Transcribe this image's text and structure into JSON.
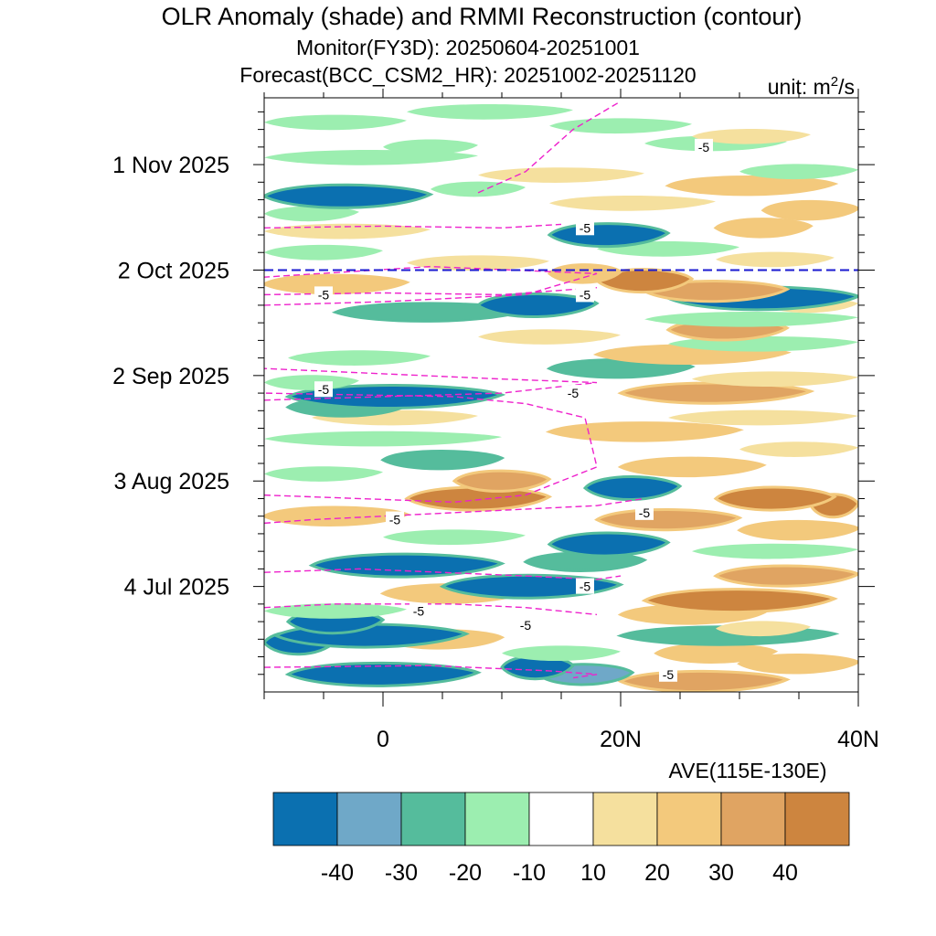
{
  "chart_data": {
    "type": "heatmap",
    "title": "OLR Anomaly (shade) and RMMI Reconstruction (contour)",
    "subtitle_monitor": "Monitor(FY3D): 20250604-20251001",
    "subtitle_forecast": "Forecast(BCC_CSM2_HR): 20251002-20251120",
    "unit_label": "unit: m",
    "unit_sup": "2",
    "unit_tail": "/s",
    "xlabel": "AVE(115E-130E)",
    "x_range": [
      -10,
      40
    ],
    "x_ticks": [
      {
        "value": 0,
        "label": "0"
      },
      {
        "value": 20,
        "label": "20N"
      },
      {
        "value": 40,
        "label": "40N"
      }
    ],
    "y_range_days": [
      0,
      169
    ],
    "y_start": "2025-06-04",
    "y_end": "2025-11-20",
    "y_ticks": [
      {
        "day": 30,
        "label": "4 Jul 2025"
      },
      {
        "day": 60,
        "label": "3 Aug 2025"
      },
      {
        "day": 90,
        "label": "2 Sep 2025"
      },
      {
        "day": 120,
        "label": "2 Oct 2025"
      },
      {
        "day": 150,
        "label": "1 Nov 2025"
      }
    ],
    "forecast_start_day": 120,
    "colorbar": {
      "colors": [
        "#0b70b0",
        "#6fa8c8",
        "#55bc9c",
        "#9ceeb0",
        "#ffffff",
        "#f5e09e",
        "#f3c97c",
        "#e0a462",
        "#cd853f"
      ],
      "labels": [
        "-40",
        "-30",
        "-20",
        "-10",
        "10",
        "20",
        "30",
        "40"
      ]
    },
    "bands": [
      {
        "day": 3,
        "lat0": 20,
        "lat1": 34,
        "level": 3
      },
      {
        "day": 5,
        "lat0": -8,
        "lat1": 8,
        "level": -4
      },
      {
        "day": 5,
        "lat0": 13,
        "lat1": 21,
        "level": -3
      },
      {
        "day": 7,
        "lat0": 10,
        "lat1": 16,
        "level": -4
      },
      {
        "day": 8,
        "lat0": 30,
        "lat1": 40,
        "level": 2
      },
      {
        "day": 11,
        "lat0": 10,
        "lat1": 20,
        "level": -1
      },
      {
        "day": 11,
        "lat0": 23,
        "lat1": 33,
        "level": 2
      },
      {
        "day": 14,
        "lat0": -10,
        "lat1": -4,
        "level": -4
      },
      {
        "day": 15,
        "lat0": 0,
        "lat1": 10,
        "level": 2
      },
      {
        "day": 16,
        "lat0": -9,
        "lat1": 7,
        "level": -4
      },
      {
        "day": 16,
        "lat0": 20,
        "lat1": 38,
        "level": -2
      },
      {
        "day": 18,
        "lat0": 28,
        "lat1": 36,
        "level": 1
      },
      {
        "day": 20,
        "lat0": -8,
        "lat1": 0,
        "level": -4
      },
      {
        "day": 22,
        "lat0": 20,
        "lat1": 32,
        "level": 2
      },
      {
        "day": 23,
        "lat0": -10,
        "lat1": 2,
        "level": -1
      },
      {
        "day": 26,
        "lat0": 22,
        "lat1": 38,
        "level": 4
      },
      {
        "day": 28,
        "lat0": 0,
        "lat1": 12,
        "level": 2
      },
      {
        "day": 30,
        "lat0": 5,
        "lat1": 20,
        "level": -4
      },
      {
        "day": 33,
        "lat0": 28,
        "lat1": 40,
        "level": 3
      },
      {
        "day": 36,
        "lat0": -6,
        "lat1": 10,
        "level": -4
      },
      {
        "day": 37,
        "lat0": 12,
        "lat1": 22,
        "level": -2
      },
      {
        "day": 40,
        "lat0": 26,
        "lat1": 40,
        "level": -1
      },
      {
        "day": 42,
        "lat0": 14,
        "lat1": 24,
        "level": -4
      },
      {
        "day": 44,
        "lat0": 0,
        "lat1": 12,
        "level": -1
      },
      {
        "day": 46,
        "lat0": 30,
        "lat1": 40,
        "level": 2
      },
      {
        "day": 49,
        "lat0": 18,
        "lat1": 30,
        "level": 3
      },
      {
        "day": 50,
        "lat0": -10,
        "lat1": 2,
        "level": 2
      },
      {
        "day": 53,
        "lat0": 36,
        "lat1": 40,
        "level": 4
      },
      {
        "day": 55,
        "lat0": 2,
        "lat1": 14,
        "level": 4
      },
      {
        "day": 55,
        "lat0": 28,
        "lat1": 38,
        "level": 4
      },
      {
        "day": 58,
        "lat0": 17,
        "lat1": 25,
        "level": -4
      },
      {
        "day": 60,
        "lat0": 6,
        "lat1": 14,
        "level": 3
      },
      {
        "day": 62,
        "lat0": -10,
        "lat1": 0,
        "level": -1
      },
      {
        "day": 64,
        "lat0": 20,
        "lat1": 32,
        "level": 2
      },
      {
        "day": 66,
        "lat0": 0,
        "lat1": 10,
        "level": -2
      },
      {
        "day": 69,
        "lat0": 30,
        "lat1": 40,
        "level": 1
      },
      {
        "day": 72,
        "lat0": -10,
        "lat1": 10,
        "level": -1
      },
      {
        "day": 74,
        "lat0": 14,
        "lat1": 30,
        "level": 2
      },
      {
        "day": 78,
        "lat0": -6,
        "lat1": 8,
        "level": 1
      },
      {
        "day": 78,
        "lat0": 24,
        "lat1": 40,
        "level": 1
      },
      {
        "day": 81,
        "lat0": -8,
        "lat1": 2,
        "level": -2
      },
      {
        "day": 84,
        "lat0": -8,
        "lat1": 10,
        "level": -4
      },
      {
        "day": 85,
        "lat0": 20,
        "lat1": 36,
        "level": 3
      },
      {
        "day": 88,
        "lat0": -10,
        "lat1": -2,
        "level": -1
      },
      {
        "day": 89,
        "lat0": 26,
        "lat1": 40,
        "level": 1
      },
      {
        "day": 92,
        "lat0": 14,
        "lat1": 26,
        "level": -2
      },
      {
        "day": 95,
        "lat0": -8,
        "lat1": 4,
        "level": -1
      },
      {
        "day": 96,
        "lat0": 18,
        "lat1": 34,
        "level": 2
      },
      {
        "day": 99,
        "lat0": 24,
        "lat1": 40,
        "level": -1
      },
      {
        "day": 101,
        "lat0": 8,
        "lat1": 20,
        "level": 1
      },
      {
        "day": 103,
        "lat0": 24,
        "lat1": 34,
        "level": 3
      },
      {
        "day": 106,
        "lat0": 22,
        "lat1": 40,
        "level": -1
      },
      {
        "day": 108,
        "lat0": -4,
        "lat1": 12,
        "level": -2
      },
      {
        "day": 110,
        "lat0": 8,
        "lat1": 18,
        "level": -4
      },
      {
        "day": 110,
        "lat0": 32,
        "lat1": 40,
        "level": 1
      },
      {
        "day": 112,
        "lat0": 24,
        "lat1": 40,
        "level": -4
      },
      {
        "day": 114,
        "lat0": 22,
        "lat1": 34,
        "level": 3
      },
      {
        "day": 116,
        "lat0": -10,
        "lat1": 2,
        "level": 2
      },
      {
        "day": 117,
        "lat0": 18,
        "lat1": 26,
        "level": 4
      },
      {
        "day": 119,
        "lat0": 14,
        "lat1": 20,
        "level": 2
      },
      {
        "day": 122,
        "lat0": 2,
        "lat1": 14,
        "level": 1
      },
      {
        "day": 123,
        "lat0": 28,
        "lat1": 38,
        "level": 1
      },
      {
        "day": 125,
        "lat0": -10,
        "lat1": 0,
        "level": -1
      },
      {
        "day": 126,
        "lat0": 18,
        "lat1": 30,
        "level": -1
      },
      {
        "day": 130,
        "lat0": 14,
        "lat1": 24,
        "level": -4
      },
      {
        "day": 131,
        "lat0": -10,
        "lat1": 4,
        "level": 1
      },
      {
        "day": 132,
        "lat0": 28,
        "lat1": 36,
        "level": 2
      },
      {
        "day": 136,
        "lat0": -10,
        "lat1": -2,
        "level": -1
      },
      {
        "day": 137,
        "lat0": 32,
        "lat1": 40,
        "level": 2
      },
      {
        "day": 139,
        "lat0": 14,
        "lat1": 28,
        "level": 1
      },
      {
        "day": 141,
        "lat0": -10,
        "lat1": 4,
        "level": -4
      },
      {
        "day": 143,
        "lat0": 4,
        "lat1": 12,
        "level": -1
      },
      {
        "day": 144,
        "lat0": 24,
        "lat1": 38,
        "level": 2
      },
      {
        "day": 147,
        "lat0": 8,
        "lat1": 22,
        "level": 1
      },
      {
        "day": 148,
        "lat0": 30,
        "lat1": 40,
        "level": -1
      },
      {
        "day": 152,
        "lat0": -10,
        "lat1": 8,
        "level": -1
      },
      {
        "day": 155,
        "lat0": 0,
        "lat1": 8,
        "level": -1
      },
      {
        "day": 156,
        "lat0": 22,
        "lat1": 34,
        "level": -1
      },
      {
        "day": 158,
        "lat0": 26,
        "lat1": 36,
        "level": 1
      },
      {
        "day": 161,
        "lat0": 14,
        "lat1": 26,
        "level": -1
      },
      {
        "day": 162,
        "lat0": -10,
        "lat1": 2,
        "level": -1
      },
      {
        "day": 165,
        "lat0": 2,
        "lat1": 16,
        "level": -1
      }
    ],
    "contours": [
      {
        "lat": [
          -10,
          4,
          14,
          18,
          16
        ],
        "day": [
          7,
          7.5,
          6,
          5,
          4
        ]
      },
      {
        "lat": [
          -10,
          -4,
          6,
          12,
          18
        ],
        "day": [
          24,
          25,
          25,
          24,
          22
        ]
      },
      {
        "lat": [
          -10,
          -2,
          12,
          18,
          20
        ],
        "day": [
          34,
          35,
          33,
          32,
          33
        ]
      },
      {
        "lat": [
          -10,
          -6,
          6,
          18,
          22
        ],
        "day": [
          48,
          49,
          51,
          53,
          55
        ]
      },
      {
        "lat": [
          -10,
          6,
          12,
          18,
          17,
          12,
          6,
          -10
        ],
        "day": [
          56,
          54,
          56,
          64,
          78,
          82,
          84,
          85
        ]
      },
      {
        "lat": [
          -10,
          0,
          10,
          18,
          10,
          -10
        ],
        "day": [
          83,
          84,
          85,
          88,
          89,
          92
        ]
      },
      {
        "lat": [
          -10,
          0,
          10,
          18
        ],
        "day": [
          113,
          113.5,
          113,
          115
        ]
      },
      {
        "lat": [
          -10,
          0,
          12,
          18,
          4,
          -10
        ],
        "day": [
          110,
          111,
          113,
          119,
          121,
          118
        ]
      },
      {
        "lat": [
          -10,
          0,
          10,
          15
        ],
        "day": [
          132,
          132.5,
          132,
          133
        ]
      },
      {
        "lat": [
          8,
          12,
          16,
          18,
          20
        ],
        "day": [
          142,
          148,
          160,
          164,
          168
        ]
      }
    ],
    "contour_labels": [
      {
        "lat": 3,
        "day": 23,
        "text": "-5"
      },
      {
        "lat": 12,
        "day": 19,
        "text": "-5"
      },
      {
        "lat": 17,
        "day": 30,
        "text": "-5"
      },
      {
        "lat": 24,
        "day": 5,
        "text": "-5"
      },
      {
        "lat": 1,
        "day": 49,
        "text": "-5"
      },
      {
        "lat": 22,
        "day": 51,
        "text": "-5"
      },
      {
        "lat": -5,
        "day": 86,
        "text": "-5"
      },
      {
        "lat": 16,
        "day": 85,
        "text": "-5"
      },
      {
        "lat": -5,
        "day": 113,
        "text": "-5"
      },
      {
        "lat": 17,
        "day": 113,
        "text": "-5"
      },
      {
        "lat": 17,
        "day": 132,
        "text": "-5"
      },
      {
        "lat": 27,
        "day": 155,
        "text": "-5"
      }
    ]
  }
}
